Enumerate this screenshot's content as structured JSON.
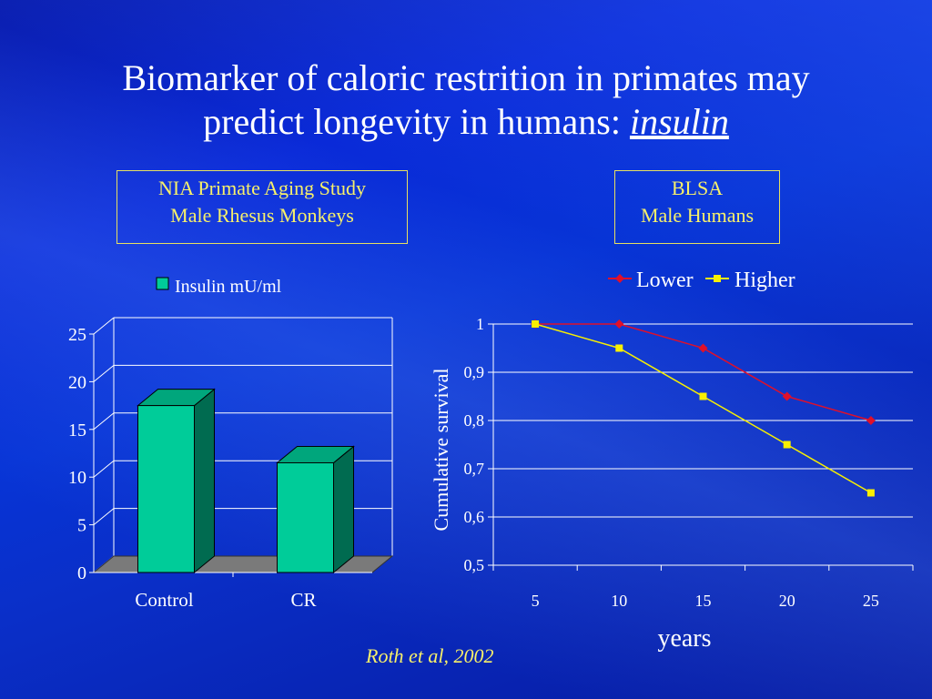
{
  "title": {
    "line1": "Biomarker of caloric restrition in primates may",
    "line2_prefix": "predict longevity in humans: ",
    "line2_emph": "insulin"
  },
  "left_box": {
    "line1": "NIA Primate Aging Study",
    "line2": "Male Rhesus Monkeys"
  },
  "right_box": {
    "line1": "BLSA",
    "line2": "Male Humans"
  },
  "citation": "Roth et al, 2002",
  "colors": {
    "bar_front": "#00cc99",
    "bar_side": "#006b50",
    "bar_top": "#00a67c",
    "floor": "#7a7a7a",
    "lower_line": "#e0102a",
    "higher_line": "#f8f000",
    "label_box": "#f7f06a"
  },
  "chart_data": [
    {
      "type": "bar",
      "categories": [
        "Control",
        "CR"
      ],
      "series": [
        {
          "name": "Insulin mU/ml",
          "values": [
            17.5,
            11.5
          ]
        }
      ],
      "ylim": [
        0,
        25
      ],
      "yticks": [
        0,
        5,
        10,
        15,
        20,
        25
      ],
      "xlabel": "",
      "ylabel": "",
      "grid": true,
      "legend_position": "top",
      "style": "3d"
    },
    {
      "type": "line",
      "x": [
        5,
        10,
        15,
        20,
        25
      ],
      "series": [
        {
          "name": "Lower",
          "values": [
            1.0,
            1.0,
            0.95,
            0.85,
            0.8
          ]
        },
        {
          "name": "Higher",
          "values": [
            1.0,
            0.95,
            0.85,
            0.75,
            0.65
          ]
        }
      ],
      "ylim": [
        0.5,
        1.0
      ],
      "yticks": [
        "0,5",
        "0,6",
        "0,7",
        "0,8",
        "0,9",
        "1"
      ],
      "xticks": [
        "5",
        "10",
        "15",
        "20",
        "25"
      ],
      "xlabel": "years",
      "ylabel": "Cumulative survival",
      "grid": true,
      "legend_position": "top"
    }
  ]
}
